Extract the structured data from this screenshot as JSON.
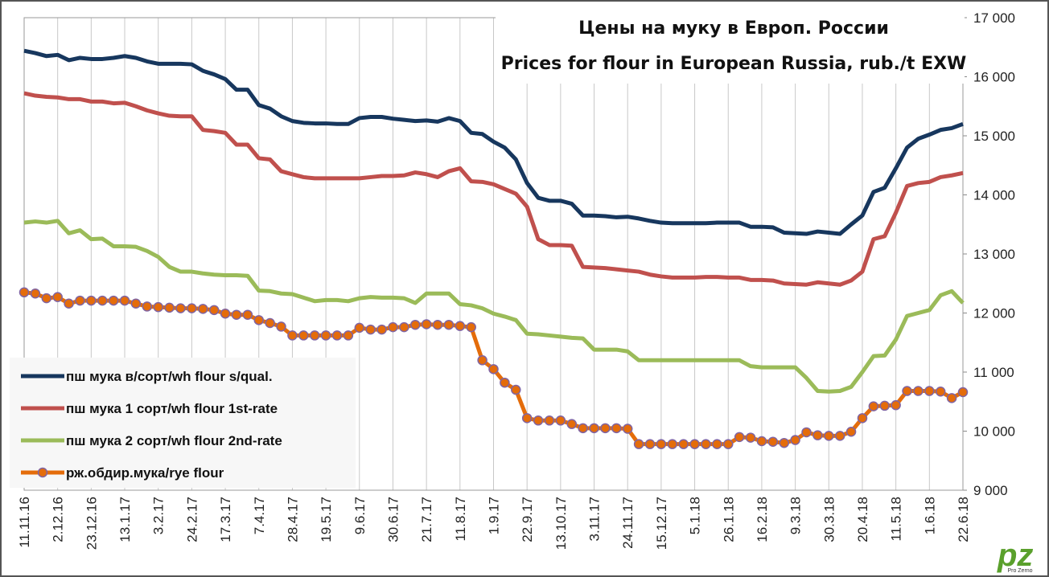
{
  "chart_data": {
    "type": "line",
    "title": [
      "Цены на муку в Европ. России",
      "Prices for flour in European Russia, rub./t EXW"
    ],
    "categories": [
      "11.11.16",
      null,
      null,
      "2.12.16",
      null,
      null,
      "23.12.16",
      null,
      null,
      "13.1.17",
      null,
      null,
      "3.2.17",
      null,
      null,
      "24.2.17",
      null,
      null,
      "17.3.17",
      null,
      null,
      "7.4.17",
      null,
      null,
      "28.4.17",
      null,
      null,
      "19.5.17",
      null,
      null,
      "9.6.17",
      null,
      null,
      "30.6.17",
      null,
      null,
      "21.7.17",
      null,
      null,
      "11.8.17",
      null,
      null,
      "1.9.17",
      null,
      null,
      "22.9.17",
      null,
      null,
      "13.10.17",
      null,
      null,
      "3.11.17",
      null,
      null,
      "24.11.17",
      null,
      null,
      "15.12.17",
      null,
      null,
      "5.1.18",
      null,
      null,
      "26.1.18",
      null,
      null,
      "16.2.18",
      null,
      null,
      "9.3.18",
      null,
      null,
      "30.3.18",
      null,
      null,
      "20.4.18",
      null,
      null,
      "11.5.18",
      null,
      null,
      "1.6.18",
      null,
      null,
      "22.6.18"
    ],
    "series": [
      {
        "name": "пш мука в/сорт/wh flour s/qual.",
        "color": "#17375e",
        "marker": false,
        "values": [
          16440,
          16400,
          16350,
          16370,
          16280,
          16320,
          16300,
          16300,
          16320,
          16350,
          16320,
          16260,
          16220,
          16220,
          16220,
          16210,
          16100,
          16040,
          15960,
          15780,
          15780,
          15520,
          15460,
          15330,
          15250,
          15220,
          15210,
          15210,
          15200,
          15200,
          15300,
          15320,
          15320,
          15290,
          15270,
          15250,
          15260,
          15240,
          15300,
          15250,
          15050,
          15030,
          14900,
          14800,
          14600,
          14200,
          13950,
          13900,
          13900,
          13850,
          13650,
          13650,
          13640,
          13620,
          13630,
          13600,
          13560,
          13530,
          13520,
          13520,
          13520,
          13520,
          13530,
          13530,
          13530,
          13460,
          13460,
          13450,
          13360,
          13350,
          13340,
          13380,
          13360,
          13340,
          13500,
          13650,
          14050,
          14120,
          14450,
          14800,
          14950,
          15020,
          15100,
          15130,
          15200
        ]
      },
      {
        "name": "пш мука 1 сорт/wh flour 1st-rate",
        "color": "#c0504d",
        "marker": false,
        "values": [
          15720,
          15680,
          15660,
          15650,
          15620,
          15620,
          15580,
          15580,
          15550,
          15560,
          15500,
          15430,
          15380,
          15340,
          15330,
          15330,
          15100,
          15080,
          15050,
          14850,
          14850,
          14620,
          14600,
          14400,
          14350,
          14300,
          14280,
          14280,
          14280,
          14280,
          14280,
          14300,
          14320,
          14320,
          14330,
          14380,
          14350,
          14300,
          14400,
          14450,
          14230,
          14220,
          14180,
          14100,
          14020,
          13800,
          13250,
          13150,
          13150,
          13140,
          12780,
          12770,
          12760,
          12740,
          12720,
          12700,
          12650,
          12620,
          12600,
          12600,
          12600,
          12610,
          12610,
          12600,
          12600,
          12560,
          12560,
          12550,
          12500,
          12490,
          12480,
          12520,
          12500,
          12480,
          12550,
          12700,
          13250,
          13300,
          13700,
          14150,
          14200,
          14220,
          14300,
          14330,
          14370
        ]
      },
      {
        "name": "пш мука 2 сорт/wh flour 2nd-rate",
        "color": "#9bbb59",
        "marker": false,
        "values": [
          13530,
          13550,
          13530,
          13560,
          13350,
          13400,
          13250,
          13260,
          13130,
          13130,
          13120,
          13050,
          12950,
          12780,
          12700,
          12700,
          12670,
          12650,
          12640,
          12640,
          12630,
          12380,
          12370,
          12330,
          12320,
          12260,
          12200,
          12220,
          12220,
          12200,
          12250,
          12270,
          12260,
          12260,
          12250,
          12170,
          12330,
          12330,
          12330,
          12150,
          12130,
          12080,
          11990,
          11940,
          11880,
          11650,
          11640,
          11620,
          11600,
          11580,
          11570,
          11380,
          11380,
          11380,
          11350,
          11200,
          11200,
          11200,
          11200,
          11200,
          11200,
          11200,
          11200,
          11200,
          11200,
          11100,
          11080,
          11080,
          11080,
          11080,
          10900,
          10680,
          10670,
          10680,
          10750,
          11000,
          11270,
          11280,
          11550,
          11950,
          12000,
          12050,
          12300,
          12370,
          12170
        ]
      },
      {
        "name": "рж.обдир.мука/rye flour",
        "color": "#e46c0a",
        "marker": true,
        "marker_edge": "#8064a2",
        "values": [
          12350,
          12330,
          12250,
          12270,
          12160,
          12210,
          12210,
          12210,
          12210,
          12210,
          12160,
          12110,
          12100,
          12090,
          12080,
          12080,
          12070,
          12050,
          11990,
          11970,
          11970,
          11880,
          11830,
          11770,
          11620,
          11620,
          11620,
          11620,
          11620,
          11620,
          11750,
          11720,
          11720,
          11760,
          11760,
          11800,
          11810,
          11800,
          11800,
          11780,
          11760,
          11200,
          11050,
          10820,
          10700,
          10220,
          10180,
          10180,
          10180,
          10120,
          10050,
          10050,
          10050,
          10050,
          10040,
          9780,
          9780,
          9780,
          9780,
          9780,
          9780,
          9780,
          9780,
          9780,
          9900,
          9890,
          9830,
          9820,
          9800,
          9850,
          9980,
          9930,
          9920,
          9920,
          9990,
          10220,
          10420,
          10430,
          10440,
          10680,
          10680,
          10680,
          10670,
          10560,
          10660
        ]
      }
    ],
    "ylim": [
      9000,
      17000
    ],
    "yticks": [
      {
        "value": 9000,
        "label": "9 000"
      },
      {
        "value": 10000,
        "label": "10 000"
      },
      {
        "value": 11000,
        "label": "11 000"
      },
      {
        "value": 12000,
        "label": "12 000"
      },
      {
        "value": 13000,
        "label": "13 000"
      },
      {
        "value": 14000,
        "label": "14 000"
      },
      {
        "value": 15000,
        "label": "15 000"
      },
      {
        "value": 16000,
        "label": "16 000"
      },
      {
        "value": 17000,
        "label": "17 000"
      }
    ],
    "grid": "vertical",
    "legend": "lower left",
    "logo_text": "Pro Zerno"
  }
}
